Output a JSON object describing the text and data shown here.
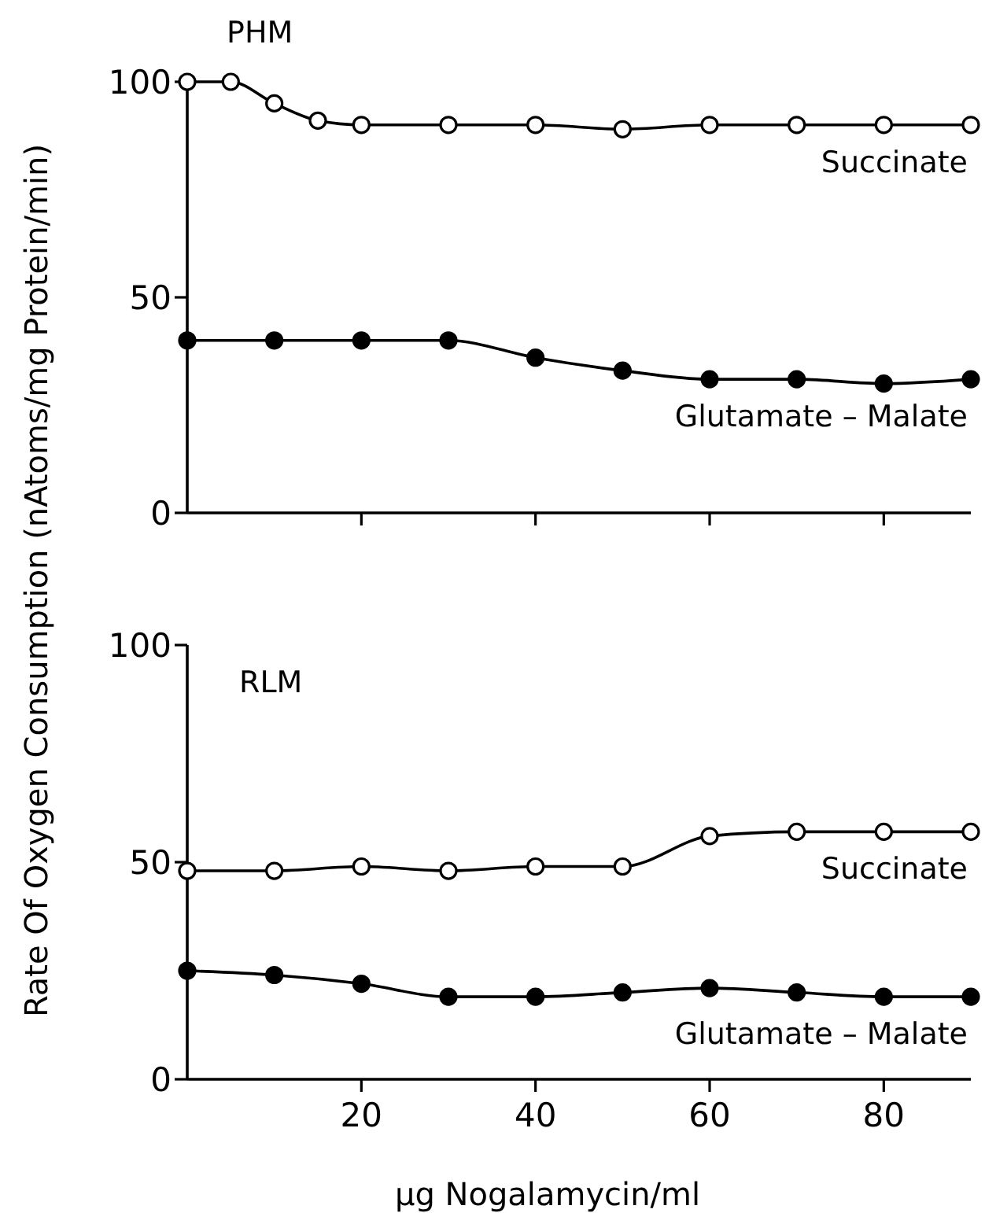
{
  "chart_data": [
    {
      "type": "line",
      "title": "PHM",
      "ylabel": "Rate Of Oxygen Consumption (nAtoms/mg Protein/min)",
      "xlim": [
        0,
        90
      ],
      "xticks": [
        20,
        40,
        60,
        80
      ],
      "ylim": [
        0,
        100
      ],
      "yticks": [
        0,
        50,
        100
      ],
      "tick_labels": "y",
      "marker": "circle",
      "series": [
        {
          "name": "Succinate",
          "color": "#000000",
          "x": [
            0,
            5,
            10,
            15,
            20,
            30,
            40,
            50,
            60,
            70,
            80,
            90
          ],
          "values": [
            100,
            100,
            95,
            91,
            90,
            90,
            90,
            89,
            90,
            90,
            90,
            90
          ]
        },
        {
          "name": "Glutamate – Malate",
          "color": "#000000",
          "x": [
            0,
            10,
            20,
            30,
            40,
            50,
            60,
            70,
            80,
            90
          ],
          "values": [
            40,
            40,
            40,
            40,
            36,
            33,
            31,
            31,
            30,
            31
          ]
        }
      ]
    },
    {
      "type": "line",
      "title": "RLM",
      "xlabel": "μg Nogalamycin/ml",
      "xlim": [
        0,
        90
      ],
      "xticks": [
        20,
        40,
        60,
        80
      ],
      "ylim": [
        0,
        100
      ],
      "yticks": [
        0,
        50,
        100
      ],
      "marker": "circle",
      "series": [
        {
          "name": "Succinate",
          "color": "#000000",
          "x": [
            0,
            10,
            20,
            30,
            40,
            50,
            60,
            70,
            80,
            90
          ],
          "values": [
            48,
            48,
            49,
            48,
            49,
            49,
            56,
            57,
            57,
            57
          ]
        },
        {
          "name": "Glutamate – Malate",
          "color": "#000000",
          "x": [
            0,
            10,
            20,
            30,
            40,
            50,
            60,
            70,
            80,
            90
          ],
          "values": [
            25,
            24,
            22,
            19,
            19,
            20,
            21,
            20,
            19,
            19
          ]
        }
      ]
    }
  ]
}
